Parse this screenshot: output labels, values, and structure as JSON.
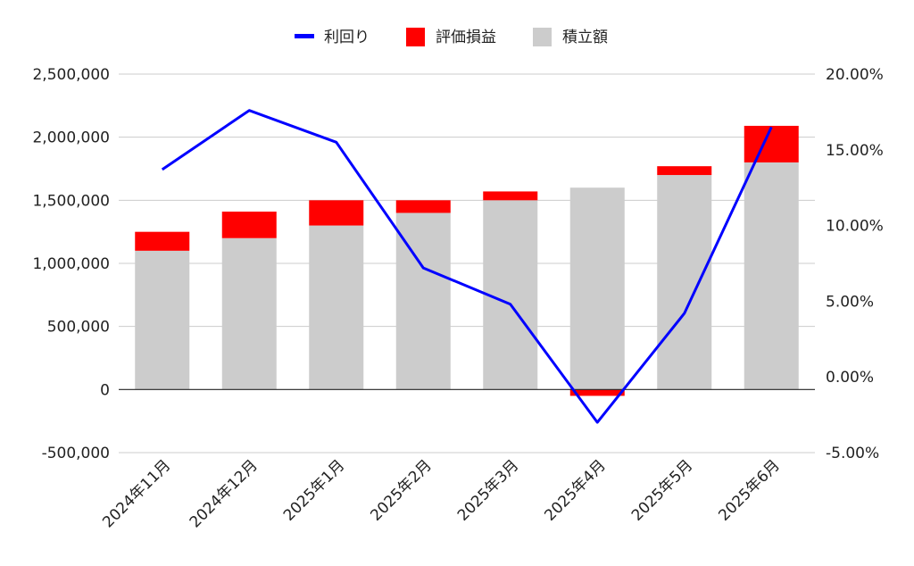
{
  "chart_data": {
    "type": "bar",
    "stacked": true,
    "categories": [
      "2024年11月",
      "2024年12月",
      "2025年1月",
      "2025年2月",
      "2025年3月",
      "2025年4月",
      "2025年5月",
      "2025年6月"
    ],
    "series": [
      {
        "name": "積立額",
        "type": "bar",
        "axis": "left",
        "color": "#cccccc",
        "values": [
          1100000,
          1200000,
          1300000,
          1400000,
          1500000,
          1600000,
          1700000,
          1800000
        ]
      },
      {
        "name": "評価損益",
        "type": "bar",
        "axis": "left",
        "color": "#ff0000",
        "values": [
          150000,
          210000,
          200000,
          100000,
          70000,
          -50000,
          70000,
          290000
        ]
      },
      {
        "name": "利回り",
        "type": "line",
        "axis": "right",
        "color": "#0000ff",
        "values": [
          13.7,
          17.6,
          15.5,
          7.2,
          4.8,
          -3.0,
          4.2,
          16.5
        ]
      }
    ],
    "legend": {
      "position": "top",
      "order": [
        "利回り",
        "評価損益",
        "積立額"
      ]
    },
    "left_axis": {
      "ylim": [
        -500000,
        2500000
      ],
      "ticks": [
        2500000,
        2000000,
        1500000,
        1000000,
        500000,
        0,
        -500000
      ],
      "tick_labels": [
        "2,500,000",
        "2,000,000",
        "1,500,000",
        "1,000,000",
        "500,000",
        "0",
        "-500,000"
      ]
    },
    "right_axis": {
      "ylim": [
        -5,
        20
      ],
      "ticks": [
        20,
        15,
        10,
        5,
        0,
        -5
      ],
      "tick_labels": [
        "20.00%",
        "15.00%",
        "10.00%",
        "5.00%",
        "0.00%",
        "-5.00%"
      ]
    },
    "grid": true
  }
}
